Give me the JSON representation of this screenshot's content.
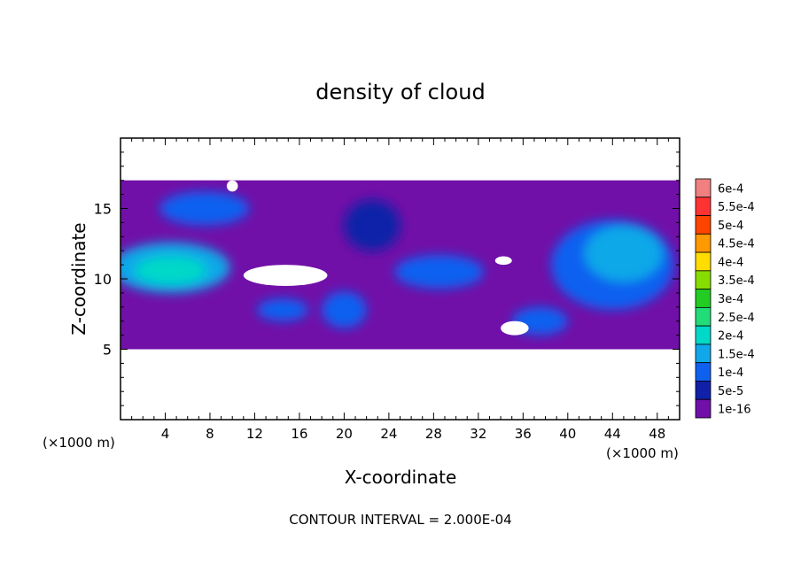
{
  "chart_data": {
    "type": "heatmap",
    "title": "density of cloud",
    "xlabel": "X-coordinate",
    "ylabel": "Z-coordinate",
    "x_unit_left": "(×1000 m)",
    "x_unit_right": "(×1000 m)",
    "footer": "CONTOUR INTERVAL = 2.000E-04",
    "xlim": [
      0,
      50
    ],
    "ylim": [
      0,
      20
    ],
    "x_ticks": [
      4,
      8,
      12,
      16,
      20,
      24,
      28,
      32,
      36,
      40,
      44,
      48
    ],
    "y_ticks": [
      5,
      10,
      15
    ],
    "colorbar": {
      "labels": [
        "6e-4",
        "5.5e-4",
        "5e-4",
        "4.5e-4",
        "4e-4",
        "3.5e-4",
        "3e-4",
        "2.5e-4",
        "2e-4",
        "1.5e-4",
        "1e-4",
        "5e-5",
        "1e-16"
      ],
      "colors": [
        "#f08080",
        "#ff3333",
        "#ff4400",
        "#ff9900",
        "#ffdd00",
        "#88dd00",
        "#22cc22",
        "#22dd77",
        "#00d8c8",
        "#10a8e8",
        "#1060f0",
        "#1020a8",
        "#7010a8"
      ]
    },
    "cloud_layer": {
      "background_level": "1e-16",
      "z_range": [
        5,
        17
      ],
      "clear_gaps": [
        {
          "x": [
            11,
            18.5
          ],
          "z": [
            9.5,
            11
          ]
        },
        {
          "x": [
            33.5,
            35
          ],
          "z": [
            11,
            11.6
          ]
        },
        {
          "x": [
            34,
            36.5
          ],
          "z": [
            6,
            7
          ]
        },
        {
          "x": [
            9.5,
            10.5
          ],
          "z": [
            16.2,
            17
          ]
        }
      ],
      "cells": [
        {
          "x": 4.5,
          "z": 10.8,
          "rx": 5.3,
          "rz": 1.8,
          "level": "1.5e-4"
        },
        {
          "x": 4.5,
          "z": 10.6,
          "rx": 3.2,
          "rz": 1.0,
          "level": "2e-4"
        },
        {
          "x": 7.5,
          "z": 15.0,
          "rx": 4.0,
          "rz": 1.2,
          "level": "1e-4"
        },
        {
          "x": 44.0,
          "z": 11.0,
          "rx": 5.5,
          "rz": 3.2,
          "level": "1e-4"
        },
        {
          "x": 45.0,
          "z": 11.8,
          "rx": 3.5,
          "rz": 2.0,
          "level": "1.5e-4"
        },
        {
          "x": 22.5,
          "z": 13.8,
          "rx": 2.5,
          "rz": 1.8,
          "level": "5e-5"
        },
        {
          "x": 28.5,
          "z": 10.5,
          "rx": 4.0,
          "rz": 1.2,
          "level": "1e-4"
        },
        {
          "x": 20.0,
          "z": 7.8,
          "rx": 2.0,
          "rz": 1.3,
          "level": "1e-4"
        },
        {
          "x": 14.5,
          "z": 7.8,
          "rx": 2.3,
          "rz": 0.8,
          "level": "1e-4"
        },
        {
          "x": 37.5,
          "z": 7.0,
          "rx": 2.5,
          "rz": 1.0,
          "level": "1e-4"
        }
      ]
    }
  }
}
